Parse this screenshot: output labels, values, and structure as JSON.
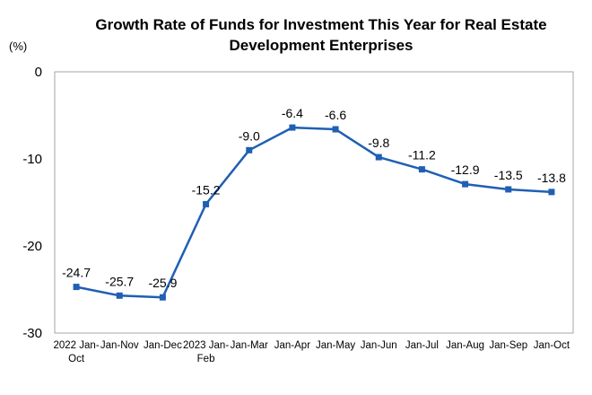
{
  "chart_data": {
    "type": "line",
    "title": [
      "Growth Rate of Funds for Investment This Year for Real Estate",
      "Development Enterprises"
    ],
    "unit_label": "(%)",
    "categories": [
      [
        "2022 Jan-",
        "Oct"
      ],
      [
        "Jan-Nov"
      ],
      [
        "Jan-Dec"
      ],
      [
        "2023 Jan-",
        "Feb"
      ],
      [
        "Jan-Mar"
      ],
      [
        "Jan-Apr"
      ],
      [
        "Jan-May"
      ],
      [
        "Jan-Jun"
      ],
      [
        "Jan-Jul"
      ],
      [
        "Jan-Aug"
      ],
      [
        "Jan-Sep"
      ],
      [
        "Jan-Oct"
      ]
    ],
    "values": [
      -24.7,
      -25.7,
      -25.9,
      -15.2,
      -9.0,
      -6.4,
      -6.6,
      -9.8,
      -11.2,
      -12.9,
      -13.5,
      -13.8
    ],
    "data_labels": [
      "-24.7",
      "-25.7",
      "-25.9",
      "-15.2",
      "-9.0",
      "-6.4",
      "-6.6",
      "-9.8",
      "-11.2",
      "-12.9",
      "-13.5",
      "-13.8"
    ],
    "yticks": [
      0,
      -10,
      -20,
      -30
    ],
    "ylim": [
      -30,
      0
    ],
    "grid": false,
    "line_color": "#1F5FB4"
  }
}
